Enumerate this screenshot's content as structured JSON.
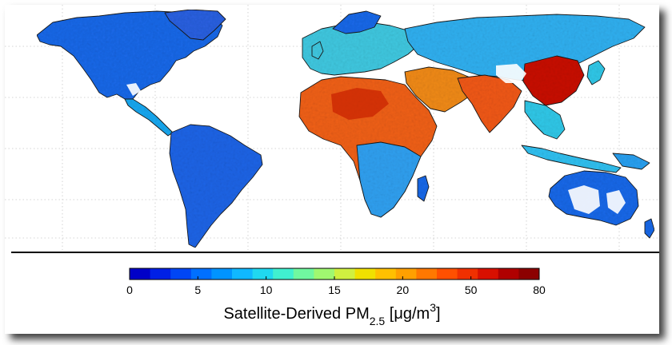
{
  "figure": {
    "caption_main": "Satellite-Derived PM",
    "caption_sub": "2.5",
    "caption_unit_open": " [",
    "caption_unit_mu": "μg/m",
    "caption_unit_sup": "3",
    "caption_unit_close": "]"
  },
  "colorbar": {
    "tick_labels": [
      "0",
      "5",
      "10",
      "15",
      "20",
      "50",
      "80"
    ],
    "colors": [
      "#0000c8",
      "#0020e6",
      "#0046f5",
      "#0070ff",
      "#0094ff",
      "#10b8ff",
      "#20d8f0",
      "#40f0d0",
      "#70f8a0",
      "#a0f870",
      "#d0f040",
      "#f0e000",
      "#ffc000",
      "#ffa000",
      "#ff7800",
      "#ff5000",
      "#f03000",
      "#d81000",
      "#b00000",
      "#8c0000"
    ]
  },
  "map": {
    "ocean_color": "#ffffff",
    "low_color": "#1060e8",
    "mid_color": "#40d0e0",
    "moderate_color": "#f0d020",
    "high_color": "#f05010",
    "very_high_color": "#a00000"
  }
}
